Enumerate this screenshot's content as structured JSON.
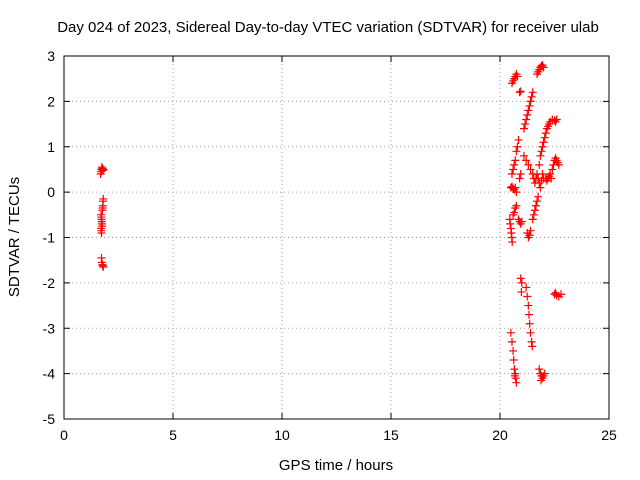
{
  "chart_data": {
    "type": "scatter",
    "title": "Day 024 of 2023, Sidereal Day-to-day VTEC variation (SDTVAR) for receiver ulab",
    "xlabel": "GPS time / hours",
    "ylabel": "SDTVAR / TECUs",
    "xlim": [
      0,
      25
    ],
    "ylim": [
      -5,
      3
    ],
    "xticks": [
      0,
      5,
      10,
      15,
      20,
      25
    ],
    "yticks": [
      -5,
      -4,
      -3,
      -2,
      -1,
      0,
      1,
      2,
      3
    ],
    "grid": true,
    "marker": "+",
    "color": "#ff0000",
    "series": [
      {
        "points": [
          [
            1.68,
            0.4
          ],
          [
            1.7,
            0.45
          ],
          [
            1.72,
            0.5
          ],
          [
            1.74,
            0.55
          ],
          [
            1.76,
            0.52
          ],
          [
            1.78,
            0.48
          ],
          [
            1.8,
            0.5
          ],
          [
            1.7,
            -0.5
          ],
          [
            1.71,
            -0.55
          ],
          [
            1.72,
            -0.6
          ],
          [
            1.73,
            -0.65
          ],
          [
            1.74,
            -0.7
          ],
          [
            1.75,
            -0.75
          ],
          [
            1.7,
            -0.8
          ],
          [
            1.71,
            -0.85
          ],
          [
            1.72,
            -0.9
          ],
          [
            1.76,
            -0.4
          ],
          [
            1.77,
            -0.35
          ],
          [
            1.78,
            -0.3
          ],
          [
            1.79,
            -0.2
          ],
          [
            1.8,
            -0.15
          ],
          [
            1.72,
            -1.45
          ],
          [
            1.74,
            -1.55
          ],
          [
            1.76,
            -1.6
          ],
          [
            1.78,
            -1.62
          ],
          [
            1.8,
            -1.65
          ],
          [
            20.5,
            0.1
          ],
          [
            20.55,
            0.12
          ],
          [
            20.6,
            0.08
          ],
          [
            20.65,
            0.05
          ],
          [
            20.7,
            0.1
          ],
          [
            20.75,
            0.0
          ],
          [
            20.45,
            -0.6
          ],
          [
            20.47,
            -0.7
          ],
          [
            20.5,
            -0.8
          ],
          [
            20.52,
            -0.9
          ],
          [
            20.54,
            -1.0
          ],
          [
            20.56,
            -1.1
          ],
          [
            20.6,
            -0.5
          ],
          [
            20.65,
            -0.45
          ],
          [
            20.7,
            -0.35
          ],
          [
            20.75,
            -0.3
          ],
          [
            20.55,
            0.4
          ],
          [
            20.6,
            0.5
          ],
          [
            20.65,
            0.6
          ],
          [
            20.7,
            0.7
          ],
          [
            20.75,
            0.9
          ],
          [
            20.8,
            1.0
          ],
          [
            20.85,
            1.15
          ],
          [
            20.55,
            2.4
          ],
          [
            20.6,
            2.45
          ],
          [
            20.65,
            2.5
          ],
          [
            20.7,
            2.55
          ],
          [
            20.75,
            2.6
          ],
          [
            20.8,
            2.55
          ],
          [
            20.9,
            2.2
          ],
          [
            20.95,
            2.22
          ],
          [
            20.9,
            0.3
          ],
          [
            20.95,
            0.4
          ],
          [
            20.85,
            -0.6
          ],
          [
            20.9,
            -0.65
          ],
          [
            20.95,
            -0.7
          ],
          [
            21.0,
            -0.65
          ],
          [
            20.95,
            -1.9
          ],
          [
            21.0,
            -2.0
          ],
          [
            20.98,
            -2.2
          ],
          [
            20.5,
            -3.1
          ],
          [
            20.55,
            -3.3
          ],
          [
            20.6,
            -3.5
          ],
          [
            20.63,
            -3.7
          ],
          [
            20.66,
            -3.9
          ],
          [
            20.7,
            -4.0
          ],
          [
            20.72,
            -4.1
          ],
          [
            20.75,
            -4.2
          ],
          [
            20.68,
            -4.05
          ],
          [
            21.1,
            0.8
          ],
          [
            21.2,
            0.7
          ],
          [
            21.3,
            0.6
          ],
          [
            21.4,
            0.5
          ],
          [
            21.5,
            0.4
          ],
          [
            21.55,
            0.3
          ],
          [
            21.1,
            1.4
          ],
          [
            21.15,
            1.5
          ],
          [
            21.2,
            1.6
          ],
          [
            21.25,
            1.7
          ],
          [
            21.3,
            1.8
          ],
          [
            21.35,
            1.9
          ],
          [
            21.4,
            2.0
          ],
          [
            21.45,
            2.1
          ],
          [
            21.5,
            2.2
          ],
          [
            21.25,
            -0.9
          ],
          [
            21.3,
            -1.0
          ],
          [
            21.35,
            -0.95
          ],
          [
            21.4,
            -0.85
          ],
          [
            21.5,
            -0.6
          ],
          [
            21.55,
            -0.5
          ],
          [
            21.6,
            -0.4
          ],
          [
            21.65,
            -0.3
          ],
          [
            21.7,
            -0.2
          ],
          [
            21.75,
            -0.1
          ],
          [
            21.2,
            -2.1
          ],
          [
            21.25,
            -2.3
          ],
          [
            21.3,
            -2.5
          ],
          [
            21.33,
            -2.7
          ],
          [
            21.36,
            -2.9
          ],
          [
            21.4,
            -3.1
          ],
          [
            21.45,
            -3.3
          ],
          [
            21.48,
            -3.4
          ],
          [
            21.6,
            0.2
          ],
          [
            21.65,
            0.3
          ],
          [
            21.7,
            0.4
          ],
          [
            21.75,
            0.3
          ],
          [
            21.8,
            0.2
          ],
          [
            21.85,
            0.1
          ],
          [
            21.9,
            0.25
          ],
          [
            21.95,
            0.4
          ],
          [
            22.0,
            0.3
          ],
          [
            21.7,
            2.6
          ],
          [
            21.75,
            2.65
          ],
          [
            21.8,
            2.7
          ],
          [
            21.85,
            2.75
          ],
          [
            21.9,
            2.78
          ],
          [
            21.95,
            2.8
          ],
          [
            22.0,
            2.75
          ],
          [
            21.8,
            0.6
          ],
          [
            21.85,
            0.8
          ],
          [
            21.9,
            0.9
          ],
          [
            21.95,
            1.0
          ],
          [
            22.0,
            1.1
          ],
          [
            22.05,
            1.2
          ],
          [
            22.1,
            1.3
          ],
          [
            22.1,
            0.3
          ],
          [
            22.15,
            0.25
          ],
          [
            22.2,
            0.3
          ],
          [
            22.25,
            0.35
          ],
          [
            22.3,
            0.4
          ],
          [
            22.35,
            0.3
          ],
          [
            22.15,
            1.4
          ],
          [
            22.2,
            1.45
          ],
          [
            22.25,
            1.5
          ],
          [
            22.3,
            1.55
          ],
          [
            22.4,
            1.6
          ],
          [
            22.5,
            1.58
          ],
          [
            22.55,
            1.55
          ],
          [
            22.6,
            1.6
          ],
          [
            22.4,
            0.5
          ],
          [
            22.45,
            0.6
          ],
          [
            22.5,
            0.7
          ],
          [
            22.55,
            0.75
          ],
          [
            22.6,
            0.7
          ],
          [
            22.65,
            0.65
          ],
          [
            22.7,
            0.6
          ],
          [
            21.8,
            -3.9
          ],
          [
            21.85,
            -4.0
          ],
          [
            21.9,
            -4.05
          ],
          [
            21.95,
            -4.1
          ],
          [
            22.0,
            -4.05
          ],
          [
            22.05,
            -4.0
          ],
          [
            21.88,
            -4.15
          ],
          [
            22.5,
            -2.25
          ],
          [
            22.6,
            -2.28
          ],
          [
            22.7,
            -2.3
          ],
          [
            22.8,
            -2.25
          ],
          [
            22.55,
            -2.22
          ]
        ]
      }
    ]
  }
}
